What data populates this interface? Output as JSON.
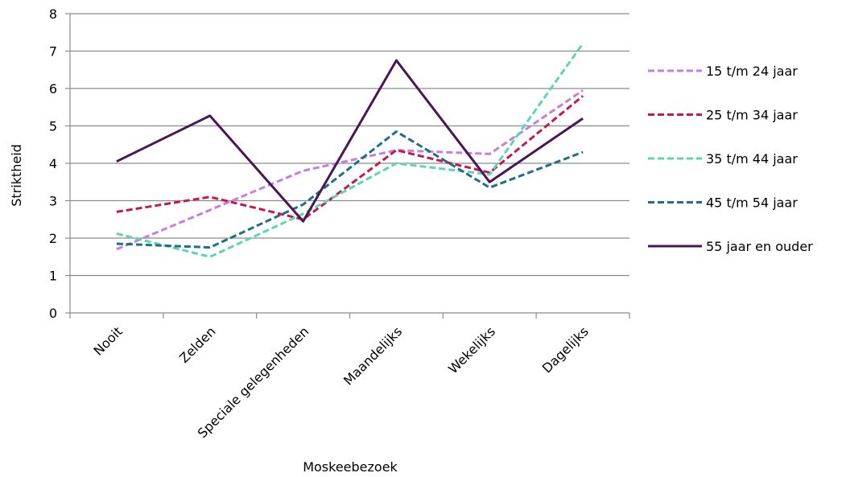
{
  "chart_data": {
    "type": "line",
    "xlabel": "Moskeebezoek",
    "ylabel": "Striktheid",
    "categories": [
      "Nooit",
      "Zelden",
      "Speciale gelegenheden",
      "Maandelijks",
      "Wekelijks",
      "Dagelijks"
    ],
    "ylim": [
      0,
      8
    ],
    "yticks": [
      "0",
      "1",
      "2",
      "3",
      "4",
      "5",
      "6",
      "7",
      "8"
    ],
    "grid": "horizontal",
    "legend": "right",
    "series": [
      {
        "name": "15 t/m 24 jaar",
        "values": [
          1.7,
          2.75,
          3.8,
          4.35,
          4.25,
          5.95
        ],
        "color": "#c47fe0",
        "dash": "dashed"
      },
      {
        "name": "25 t/m 34 jaar",
        "values": [
          2.7,
          3.1,
          2.5,
          4.35,
          3.75,
          5.8
        ],
        "color": "#c8174c",
        "dash": "dashed"
      },
      {
        "name": "35 t/m 44 jaar",
        "values": [
          2.12,
          1.5,
          2.65,
          4.0,
          3.7,
          7.2
        ],
        "color": "#5dd6ae",
        "dash": "dashed"
      },
      {
        "name": "45 t/m 54 jaar",
        "values": [
          1.85,
          1.75,
          2.9,
          4.85,
          3.35,
          4.3
        ],
        "color": "#1f6e8c",
        "dash": "dashed"
      },
      {
        "name": "55 jaar en ouder",
        "values": [
          4.05,
          5.27,
          2.45,
          6.75,
          3.5,
          5.2
        ],
        "color": "#4a1656",
        "dash": "solid"
      }
    ]
  }
}
